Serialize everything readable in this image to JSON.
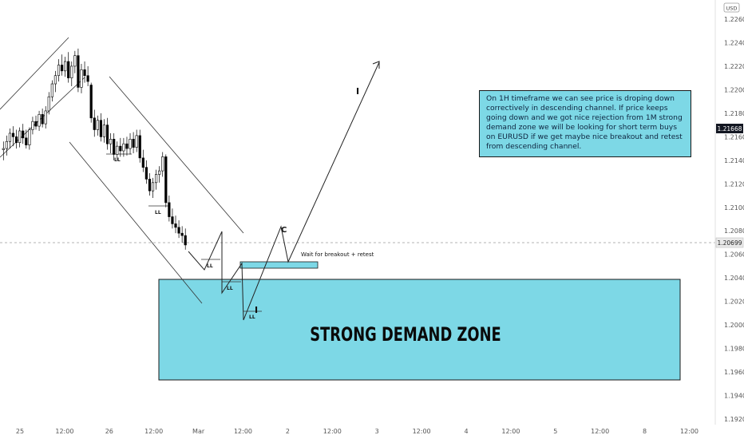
{
  "currency_badge": "USD",
  "price_labels": {
    "current": "1.21668",
    "crosshair": "1.20699"
  },
  "annotations": {
    "zone_label": "STRONG DEMAND ZONE",
    "breakout_label": "Wait for breakout + retest",
    "wave_c": "C",
    "wave_1": "I",
    "wave_1_target": "I",
    "ll_labels": [
      "LL",
      "LL",
      "LL",
      "LL",
      "LL"
    ]
  },
  "note_text": "On 1H timeframe we can see price is droping down correctively in descending channel. If price keeps going down and we got nice rejection from 1M strong demand zone we will be looking for short term buys on EURUSD if we get maybe nice breakout and retest from descending channel.",
  "colors": {
    "zone_fill": "#7dd8e6",
    "bull": "#ffffff",
    "bear": "#000000"
  },
  "chart_data": {
    "type": "candlestick",
    "symbol": "EURUSD",
    "timeframe": "1H",
    "x_tick_labels": [
      "25",
      "12:00",
      "26",
      "12:00",
      "Mar",
      "12:00",
      "2",
      "12:00",
      "3",
      "12:00",
      "4",
      "12:00",
      "5",
      "12:00",
      "8",
      "12:00"
    ],
    "y_tick_labels": [
      "1.22600",
      "1.22400",
      "1.22200",
      "1.22000",
      "1.21800",
      "1.21600",
      "1.21400",
      "1.21200",
      "1.21000",
      "1.20800",
      "1.20600",
      "1.20400",
      "1.20200",
      "1.20000",
      "1.19800",
      "1.19600",
      "1.19400",
      "1.19200"
    ],
    "ylim": [
      1.192,
      1.226
    ],
    "current_price": 1.21668,
    "crosshair_price": 1.20699,
    "demand_zone": {
      "from": 1.1955,
      "to": 1.204
    },
    "retest_zone": {
      "from": 1.2051,
      "to": 1.2057
    },
    "candles": [
      {
        "o": 1.2149,
        "h": 1.2156,
        "l": 1.214,
        "c": 1.215
      },
      {
        "o": 1.215,
        "h": 1.2161,
        "l": 1.2144,
        "c": 1.2156
      },
      {
        "o": 1.2156,
        "h": 1.2167,
        "l": 1.215,
        "c": 1.2163
      },
      {
        "o": 1.2163,
        "h": 1.2169,
        "l": 1.2152,
        "c": 1.216
      },
      {
        "o": 1.216,
        "h": 1.2166,
        "l": 1.215,
        "c": 1.2155
      },
      {
        "o": 1.2155,
        "h": 1.2168,
        "l": 1.2151,
        "c": 1.2165
      },
      {
        "o": 1.2165,
        "h": 1.2171,
        "l": 1.2154,
        "c": 1.2159
      },
      {
        "o": 1.2159,
        "h": 1.2166,
        "l": 1.215,
        "c": 1.2153
      },
      {
        "o": 1.2153,
        "h": 1.2168,
        "l": 1.2149,
        "c": 1.2166
      },
      {
        "o": 1.2166,
        "h": 1.2177,
        "l": 1.2162,
        "c": 1.2173
      },
      {
        "o": 1.2173,
        "h": 1.2178,
        "l": 1.2166,
        "c": 1.2169
      },
      {
        "o": 1.2169,
        "h": 1.2182,
        "l": 1.2165,
        "c": 1.2179
      },
      {
        "o": 1.2179,
        "h": 1.2184,
        "l": 1.2168,
        "c": 1.2171
      },
      {
        "o": 1.2171,
        "h": 1.2186,
        "l": 1.2167,
        "c": 1.2182
      },
      {
        "o": 1.2182,
        "h": 1.2198,
        "l": 1.2179,
        "c": 1.2194
      },
      {
        "o": 1.2194,
        "h": 1.2208,
        "l": 1.219,
        "c": 1.2205
      },
      {
        "o": 1.2205,
        "h": 1.2216,
        "l": 1.2198,
        "c": 1.2212
      },
      {
        "o": 1.2212,
        "h": 1.2226,
        "l": 1.2207,
        "c": 1.2221
      },
      {
        "o": 1.2221,
        "h": 1.223,
        "l": 1.2212,
        "c": 1.2216
      },
      {
        "o": 1.2216,
        "h": 1.2228,
        "l": 1.2211,
        "c": 1.2224
      },
      {
        "o": 1.2224,
        "h": 1.2232,
        "l": 1.2206,
        "c": 1.221
      },
      {
        "o": 1.221,
        "h": 1.2224,
        "l": 1.2203,
        "c": 1.222
      },
      {
        "o": 1.222,
        "h": 1.2233,
        "l": 1.2214,
        "c": 1.2229
      },
      {
        "o": 1.2229,
        "h": 1.2235,
        "l": 1.2198,
        "c": 1.2202
      },
      {
        "o": 1.2202,
        "h": 1.2222,
        "l": 1.2197,
        "c": 1.2217
      },
      {
        "o": 1.2217,
        "h": 1.2224,
        "l": 1.2206,
        "c": 1.2212
      },
      {
        "o": 1.2212,
        "h": 1.222,
        "l": 1.2203,
        "c": 1.2207
      },
      {
        "o": 1.2204,
        "h": 1.2206,
        "l": 1.2172,
        "c": 1.2176
      },
      {
        "o": 1.2176,
        "h": 1.2183,
        "l": 1.216,
        "c": 1.2166
      },
      {
        "o": 1.2166,
        "h": 1.2178,
        "l": 1.2161,
        "c": 1.2174
      },
      {
        "o": 1.2174,
        "h": 1.218,
        "l": 1.2156,
        "c": 1.216
      },
      {
        "o": 1.216,
        "h": 1.2175,
        "l": 1.2155,
        "c": 1.217
      },
      {
        "o": 1.217,
        "h": 1.2176,
        "l": 1.2149,
        "c": 1.2154
      },
      {
        "o": 1.2154,
        "h": 1.2163,
        "l": 1.2146,
        "c": 1.2158
      },
      {
        "o": 1.2158,
        "h": 1.2163,
        "l": 1.214,
        "c": 1.2145
      },
      {
        "o": 1.2145,
        "h": 1.2156,
        "l": 1.214,
        "c": 1.2152
      },
      {
        "o": 1.2152,
        "h": 1.2159,
        "l": 1.2143,
        "c": 1.2148
      },
      {
        "o": 1.2148,
        "h": 1.2159,
        "l": 1.2143,
        "c": 1.2154
      },
      {
        "o": 1.2154,
        "h": 1.216,
        "l": 1.2144,
        "c": 1.215
      },
      {
        "o": 1.215,
        "h": 1.2163,
        "l": 1.2145,
        "c": 1.2158
      },
      {
        "o": 1.2158,
        "h": 1.2164,
        "l": 1.2146,
        "c": 1.2151
      },
      {
        "o": 1.2151,
        "h": 1.2166,
        "l": 1.2147,
        "c": 1.2161
      },
      {
        "o": 1.2161,
        "h": 1.2166,
        "l": 1.2138,
        "c": 1.2142
      },
      {
        "o": 1.2142,
        "h": 1.2149,
        "l": 1.213,
        "c": 1.2134
      },
      {
        "o": 1.2134,
        "h": 1.214,
        "l": 1.212,
        "c": 1.2124
      },
      {
        "o": 1.2124,
        "h": 1.2129,
        "l": 1.211,
        "c": 1.2114
      },
      {
        "o": 1.2114,
        "h": 1.2125,
        "l": 1.2108,
        "c": 1.2121
      },
      {
        "o": 1.2121,
        "h": 1.2132,
        "l": 1.2115,
        "c": 1.2128
      },
      {
        "o": 1.2128,
        "h": 1.2135,
        "l": 1.2121,
        "c": 1.2131
      },
      {
        "o": 1.2131,
        "h": 1.2147,
        "l": 1.2126,
        "c": 1.2143
      },
      {
        "o": 1.2143,
        "h": 1.2145,
        "l": 1.21,
        "c": 1.2104
      },
      {
        "o": 1.2104,
        "h": 1.211,
        "l": 1.2088,
        "c": 1.2092
      },
      {
        "o": 1.2092,
        "h": 1.2099,
        "l": 1.2082,
        "c": 1.2086
      },
      {
        "o": 1.2086,
        "h": 1.2093,
        "l": 1.2078,
        "c": 1.2083
      },
      {
        "o": 1.2083,
        "h": 1.2089,
        "l": 1.2074,
        "c": 1.2078
      },
      {
        "o": 1.2078,
        "h": 1.2084,
        "l": 1.207,
        "c": 1.2076
      },
      {
        "o": 1.2076,
        "h": 1.2082,
        "l": 1.2064,
        "c": 1.2068
      }
    ]
  }
}
